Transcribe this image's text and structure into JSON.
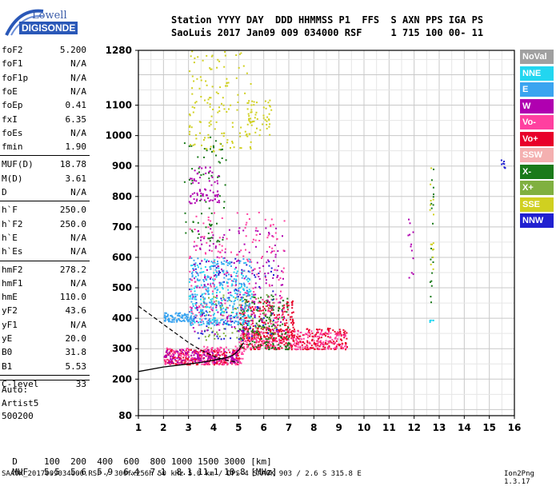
{
  "logo": {
    "line1": "Lowell",
    "line2": "DIGISONDE"
  },
  "header": {
    "line1": "Station YYYY DAY  DDD HHMMSS P1  FFS  S AXN PPS IGA PS",
    "line2": "SaoLuis 2017 Jan09 009 034000 RSF     1 715 100 00- 11"
  },
  "params": [
    {
      "name": "foF2",
      "value": "5.200"
    },
    {
      "name": "foF1",
      "value": "N/A"
    },
    {
      "name": "foF1p",
      "value": "N/A"
    },
    {
      "name": "foE",
      "value": "N/A"
    },
    {
      "name": "foEp",
      "value": "0.41"
    },
    {
      "name": "fxI",
      "value": "6.35"
    },
    {
      "name": "foEs",
      "value": "N/A"
    },
    {
      "name": "fmin",
      "value": "1.90"
    },
    {
      "name": "MUF(D)",
      "value": "18.78"
    },
    {
      "name": "M(D)",
      "value": "3.61"
    },
    {
      "name": "D",
      "value": "N/A"
    },
    {
      "name": "h`F",
      "value": "250.0"
    },
    {
      "name": "h`F2",
      "value": "250.0"
    },
    {
      "name": "h`E",
      "value": "N/A"
    },
    {
      "name": "h`Es",
      "value": "N/A"
    },
    {
      "name": "hmF2",
      "value": "278.2"
    },
    {
      "name": "hmF1",
      "value": "N/A"
    },
    {
      "name": "hmE",
      "value": "110.0"
    },
    {
      "name": "yF2",
      "value": "43.6"
    },
    {
      "name": "yF1",
      "value": "N/A"
    },
    {
      "name": "yE",
      "value": "20.0"
    },
    {
      "name": "B0",
      "value": "31.8"
    },
    {
      "name": "B1",
      "value": "5.53"
    },
    {
      "name": "C-level",
      "value": "33"
    }
  ],
  "autoscaling": {
    "line1": "Auto:",
    "line2": "Artist5",
    "line3": "500200"
  },
  "muf_table": {
    "d_label": "D",
    "muf_label": "MUF",
    "distances": [
      "100",
      "200",
      "400",
      "600",
      "800",
      "1000",
      "1500",
      "3000"
    ],
    "d_unit": "[km]",
    "mufs": [
      "5.5",
      "5.6",
      "5.9",
      "6.4",
      "7.1",
      "8.1",
      "11.1",
      "18.8"
    ],
    "muf_unit": "[MHz]"
  },
  "footer": "SAA0K_2017009034000.RSF / 300fx256h 50 kHz 5.0 km / DPS-4 SAA0K 903 / 2.6 S 315.8 E",
  "version": "Ion2Png 1.3.17",
  "legend": [
    {
      "label": "NoVal",
      "color": "#a0a0a0"
    },
    {
      "label": "NNE",
      "color": "#22d6f0"
    },
    {
      "label": "E",
      "color": "#3aa4f0"
    },
    {
      "label": "W",
      "color": "#b000b0"
    },
    {
      "label": "Vo-",
      "color": "#ff40a0"
    },
    {
      "label": "Vo+",
      "color": "#e8002a"
    },
    {
      "label": "SSW",
      "color": "#f4b0b0"
    },
    {
      "label": "X-",
      "color": "#1a7a1a"
    },
    {
      "label": "X+",
      "color": "#80b040"
    },
    {
      "label": "SSE",
      "color": "#d0d020"
    },
    {
      "label": "NNW",
      "color": "#2020d0"
    }
  ],
  "chart_data": {
    "type": "scatter",
    "xlim": [
      1,
      16
    ],
    "ylim": [
      80,
      1280
    ],
    "xticks": [
      1,
      2,
      3,
      4,
      5,
      6,
      7,
      8,
      9,
      10,
      11,
      12,
      13,
      14,
      15,
      16
    ],
    "yticks": [
      80,
      200,
      300,
      400,
      500,
      600,
      700,
      800,
      900,
      1000,
      1100,
      1280
    ],
    "grid": true,
    "legend_position": "right",
    "clusters": [
      {
        "series": "Vo+",
        "f": [
          2.0,
          5.0
        ],
        "h": [
          250,
          300
        ],
        "n": 260
      },
      {
        "series": "Vo-",
        "f": [
          2.0,
          5.2
        ],
        "h": [
          250,
          310
        ],
        "n": 200
      },
      {
        "series": "W",
        "f": [
          2.0,
          5.0
        ],
        "h": [
          255,
          300
        ],
        "n": 120
      },
      {
        "series": "Vo+",
        "f": [
          5.0,
          9.3
        ],
        "h": [
          300,
          370
        ],
        "n": 320
      },
      {
        "series": "Vo-",
        "f": [
          5.0,
          9.3
        ],
        "h": [
          300,
          360
        ],
        "n": 220
      },
      {
        "series": "Vo+",
        "f": [
          5.0,
          7.2
        ],
        "h": [
          330,
          460
        ],
        "n": 200
      },
      {
        "series": "X-",
        "f": [
          5.0,
          7.0
        ],
        "h": [
          300,
          480
        ],
        "n": 160
      },
      {
        "series": "X+",
        "f": [
          3.5,
          6.5
        ],
        "h": [
          330,
          480
        ],
        "n": 100
      },
      {
        "series": "NNW",
        "f": [
          3.0,
          6.5
        ],
        "h": [
          330,
          600
        ],
        "n": 120
      },
      {
        "series": "W",
        "f": [
          3.0,
          6.8
        ],
        "h": [
          350,
          700
        ],
        "n": 200
      },
      {
        "series": "Vo-",
        "f": [
          3.0,
          6.8
        ],
        "h": [
          380,
          750
        ],
        "n": 200
      },
      {
        "series": "NNE",
        "f": [
          3.0,
          5.5
        ],
        "h": [
          380,
          600
        ],
        "n": 180
      },
      {
        "series": "E",
        "f": [
          3.0,
          5.5
        ],
        "h": [
          380,
          600
        ],
        "n": 200
      },
      {
        "series": "E",
        "f": [
          2.0,
          3.2
        ],
        "h": [
          390,
          420
        ],
        "n": 90
      },
      {
        "series": "X-",
        "f": [
          2.8,
          4.5
        ],
        "h": [
          650,
          1000
        ],
        "n": 70
      },
      {
        "series": "W",
        "f": [
          3.0,
          4.2
        ],
        "h": [
          780,
          900
        ],
        "n": 70
      },
      {
        "series": "SSE",
        "f": [
          3.0,
          5.5
        ],
        "h": [
          950,
          1280
        ],
        "n": 140
      },
      {
        "series": "SSE",
        "f": [
          5.2,
          6.3
        ],
        "h": [
          1000,
          1120
        ],
        "n": 50
      },
      {
        "series": "W",
        "f": [
          11.7,
          11.95
        ],
        "h": [
          500,
          800
        ],
        "n": 12
      },
      {
        "series": "X-",
        "f": [
          12.6,
          12.75
        ],
        "h": [
          450,
          900
        ],
        "n": 20
      },
      {
        "series": "SSE",
        "f": [
          12.6,
          12.75
        ],
        "h": [
          550,
          900
        ],
        "n": 15
      },
      {
        "series": "NNW",
        "f": [
          15.45,
          15.6
        ],
        "h": [
          895,
          925
        ],
        "n": 8
      },
      {
        "series": "NNE",
        "f": [
          12.6,
          12.75
        ],
        "h": [
          380,
          420
        ],
        "n": 5
      }
    ],
    "trace_solid": [
      [
        1,
        225
      ],
      [
        2,
        240
      ],
      [
        3,
        250
      ],
      [
        3.5,
        255
      ],
      [
        4,
        262
      ],
      [
        4.5,
        270
      ],
      [
        4.8,
        280
      ],
      [
        5.0,
        295
      ],
      [
        5.2,
        320
      ]
    ],
    "trace_dashed": [
      [
        1,
        440
      ],
      [
        1.5,
        410
      ],
      [
        2,
        380
      ],
      [
        2.5,
        350
      ],
      [
        3,
        320
      ],
      [
        3.5,
        295
      ],
      [
        4,
        275
      ],
      [
        4.5,
        262
      ],
      [
        5,
        255
      ]
    ]
  }
}
